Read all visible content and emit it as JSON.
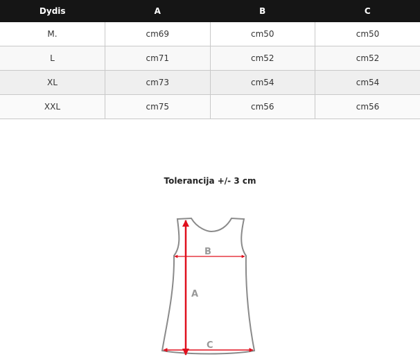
{
  "table": {
    "headers": [
      "Dydis",
      "A",
      "B",
      "C"
    ],
    "rows": [
      [
        "M.",
        "cm69",
        "cm50",
        "cm50"
      ],
      [
        "L",
        "cm71",
        "cm52",
        "cm52"
      ],
      [
        "XL",
        "cm73",
        "cm54",
        "cm54"
      ],
      [
        "XXL",
        "cm75",
        "cm56",
        "cm56"
      ]
    ]
  },
  "tolerance": "Tolerancija +/- 3 cm",
  "diagram": {
    "label_a": "A",
    "label_b": "B",
    "label_c": "C",
    "arrow_color": "#e0101e",
    "outline_color": "#8a8a8a"
  }
}
